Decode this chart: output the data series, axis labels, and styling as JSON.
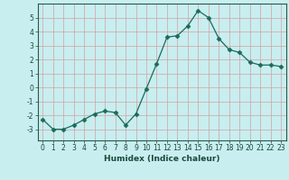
{
  "xlabel": "Humidex (Indice chaleur)",
  "x": [
    0,
    1,
    2,
    3,
    4,
    5,
    6,
    7,
    8,
    9,
    10,
    11,
    12,
    13,
    14,
    15,
    16,
    17,
    18,
    19,
    20,
    21,
    22,
    23
  ],
  "y": [
    -2.3,
    -3.0,
    -3.0,
    -2.7,
    -2.3,
    -1.9,
    -1.7,
    -1.8,
    -2.7,
    -1.9,
    -0.1,
    1.7,
    3.6,
    3.7,
    4.4,
    5.5,
    5.0,
    3.5,
    2.7,
    2.5,
    1.8,
    1.6,
    1.6,
    1.5
  ],
  "line_color": "#1a6b5a",
  "marker": "D",
  "marker_size": 2.5,
  "bg_color": "#c8eef0",
  "grid_color": "#d4a0a0",
  "ylim": [
    -3.8,
    6.0
  ],
  "yticks": [
    -3,
    -2,
    -1,
    0,
    1,
    2,
    3,
    4,
    5
  ],
  "xlim": [
    -0.5,
    23.5
  ],
  "xticks": [
    0,
    1,
    2,
    3,
    4,
    5,
    6,
    7,
    8,
    9,
    10,
    11,
    12,
    13,
    14,
    15,
    16,
    17,
    18,
    19,
    20,
    21,
    22,
    23
  ],
  "tick_fontsize": 5.5,
  "xlabel_fontsize": 6.5
}
